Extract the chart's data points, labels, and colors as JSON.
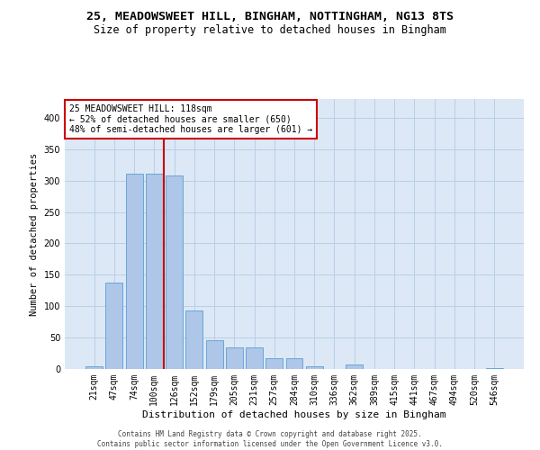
{
  "title_line1": "25, MEADOWSWEET HILL, BINGHAM, NOTTINGHAM, NG13 8TS",
  "title_line2": "Size of property relative to detached houses in Bingham",
  "xlabel": "Distribution of detached houses by size in Bingham",
  "ylabel": "Number of detached properties",
  "categories": [
    "21sqm",
    "47sqm",
    "74sqm",
    "100sqm",
    "126sqm",
    "152sqm",
    "179sqm",
    "205sqm",
    "231sqm",
    "257sqm",
    "284sqm",
    "310sqm",
    "336sqm",
    "362sqm",
    "389sqm",
    "415sqm",
    "441sqm",
    "467sqm",
    "494sqm",
    "520sqm",
    "546sqm"
  ],
  "values": [
    4,
    138,
    311,
    311,
    308,
    93,
    46,
    34,
    34,
    17,
    17,
    5,
    0,
    7,
    0,
    0,
    0,
    0,
    0,
    0,
    2
  ],
  "bar_color": "#aec6e8",
  "bar_edge_color": "#5a9fd4",
  "vline_x_index": 3,
  "vline_color": "#cc0000",
  "annotation_text": "25 MEADOWSWEET HILL: 118sqm\n← 52% of detached houses are smaller (650)\n48% of semi-detached houses are larger (601) →",
  "annotation_box_color": "#ffffff",
  "annotation_box_edge": "#cc0000",
  "ylim": [
    0,
    430
  ],
  "yticks": [
    0,
    50,
    100,
    150,
    200,
    250,
    300,
    350,
    400
  ],
  "background_color": "#dce8f5",
  "grid_color": "#b8cfe8",
  "footer_line1": "Contains HM Land Registry data © Crown copyright and database right 2025.",
  "footer_line2": "Contains public sector information licensed under the Open Government Licence v3.0."
}
